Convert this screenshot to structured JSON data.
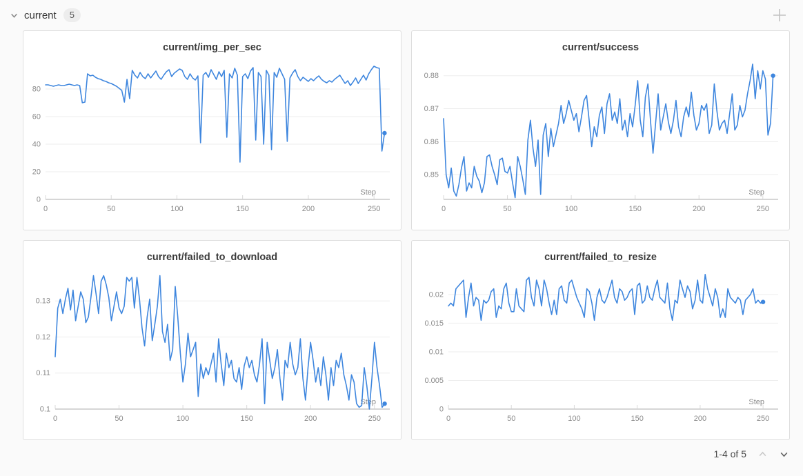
{
  "section": {
    "title": "current",
    "badge": "5"
  },
  "toolbar": {
    "add_panel_tooltip": "+"
  },
  "pagination": {
    "label": "1-4 of 5"
  },
  "colors": {
    "line": "#3e86de",
    "page_bg": "#fafafa",
    "panel_border": "#dedede",
    "grid_line": "#ededed",
    "axis_line": "#c9c9c9",
    "tick_text": "#8a8a8a"
  },
  "chart_data": [
    {
      "type": "line",
      "title": "current/img_per_sec",
      "xlabel": "Step",
      "x_ticks": [
        0,
        50,
        100,
        150,
        200,
        250
      ],
      "y_ticks": [
        0,
        20,
        40,
        60,
        80
      ],
      "xlim": [
        0,
        262
      ],
      "ylim": [
        0,
        98
      ],
      "x_start": 0,
      "x_step": 2,
      "end_marker": true,
      "values": [
        83,
        83,
        82.5,
        82,
        82.5,
        83,
        82.5,
        82.5,
        83,
        83.5,
        83,
        82.5,
        83,
        82.5,
        70,
        70.5,
        91,
        89.5,
        90,
        88.5,
        87.5,
        87,
        86,
        85.5,
        84.5,
        84,
        83,
        82,
        80.5,
        79,
        70.5,
        87,
        73,
        93.5,
        90,
        88,
        92,
        89,
        87.5,
        91,
        88,
        90.5,
        93,
        89,
        87,
        90,
        92.5,
        94,
        89,
        91.5,
        93,
        94.5,
        93.5,
        89,
        87,
        91,
        88,
        86.5,
        89.5,
        41,
        90,
        92,
        88.5,
        94,
        90.5,
        87,
        92.5,
        89,
        93.5,
        45,
        91,
        88,
        95,
        90,
        27,
        89,
        91,
        87.5,
        93,
        95.5,
        43,
        92,
        89,
        40,
        93.5,
        90,
        36,
        92,
        88.5,
        95,
        91,
        87,
        42,
        88,
        91.5,
        94,
        89,
        86,
        88.5,
        87,
        85.5,
        87.5,
        86,
        88,
        89.5,
        87,
        85.5,
        84.5,
        86,
        85,
        87,
        88.5,
        90,
        87,
        84,
        86,
        82.5,
        85,
        88,
        84,
        87,
        90,
        86.5,
        91,
        94,
        96.5,
        95.5,
        95,
        35,
        48
      ]
    },
    {
      "type": "line",
      "title": "current/success",
      "xlabel": "Step",
      "x_ticks": [
        0,
        50,
        100,
        150,
        200,
        250
      ],
      "y_ticks": [
        0.85,
        0.86,
        0.87,
        0.88
      ],
      "xlim": [
        0,
        262
      ],
      "ylim": [
        0.8425,
        0.8835
      ],
      "x_start": 0,
      "x_step": 2,
      "end_marker": true,
      "values": [
        0.867,
        0.85,
        0.846,
        0.852,
        0.845,
        0.8435,
        0.847,
        0.852,
        0.8555,
        0.845,
        0.8475,
        0.846,
        0.8525,
        0.8495,
        0.848,
        0.8445,
        0.8475,
        0.8555,
        0.856,
        0.8525,
        0.85,
        0.847,
        0.8545,
        0.855,
        0.851,
        0.8505,
        0.8525,
        0.8475,
        0.843,
        0.8555,
        0.8525,
        0.8485,
        0.844,
        0.8605,
        0.8665,
        0.858,
        0.8525,
        0.8605,
        0.844,
        0.862,
        0.8655,
        0.8555,
        0.864,
        0.8585,
        0.862,
        0.8655,
        0.871,
        0.8655,
        0.8685,
        0.8725,
        0.8695,
        0.8665,
        0.8685,
        0.863,
        0.8675,
        0.8725,
        0.874,
        0.8665,
        0.8585,
        0.8645,
        0.8615,
        0.868,
        0.8705,
        0.8625,
        0.8715,
        0.8745,
        0.8665,
        0.869,
        0.8655,
        0.873,
        0.8635,
        0.8665,
        0.8615,
        0.8685,
        0.8645,
        0.871,
        0.8785,
        0.8665,
        0.8615,
        0.8735,
        0.8775,
        0.8665,
        0.8565,
        0.8655,
        0.8745,
        0.8635,
        0.8675,
        0.8715,
        0.866,
        0.8625,
        0.8665,
        0.8725,
        0.8645,
        0.8615,
        0.8675,
        0.8705,
        0.8675,
        0.875,
        0.868,
        0.8635,
        0.8655,
        0.871,
        0.8695,
        0.8715,
        0.8625,
        0.865,
        0.8775,
        0.8695,
        0.8635,
        0.8655,
        0.8665,
        0.8625,
        0.8685,
        0.8745,
        0.8635,
        0.865,
        0.871,
        0.8675,
        0.8695,
        0.8745,
        0.8785,
        0.8835,
        0.873,
        0.8815,
        0.876,
        0.8815,
        0.879,
        0.862,
        0.8655,
        0.88
      ]
    },
    {
      "type": "line",
      "title": "current/failed_to_download",
      "xlabel": "Step",
      "x_ticks": [
        0,
        50,
        100,
        150,
        200,
        250
      ],
      "y_ticks": [
        0.1,
        0.11,
        0.12,
        0.13
      ],
      "xlim": [
        0,
        262
      ],
      "ylim": [
        0.1,
        0.1375
      ],
      "x_start": 0,
      "x_step": 2,
      "end_marker": true,
      "values": [
        0.1145,
        0.128,
        0.1305,
        0.1265,
        0.1305,
        0.1335,
        0.1275,
        0.133,
        0.1245,
        0.1285,
        0.1325,
        0.1305,
        0.124,
        0.1255,
        0.131,
        0.137,
        0.132,
        0.1265,
        0.1355,
        0.137,
        0.1345,
        0.131,
        0.1245,
        0.1285,
        0.1325,
        0.128,
        0.1265,
        0.1285,
        0.1365,
        0.1355,
        0.1365,
        0.128,
        0.1365,
        0.1305,
        0.1225,
        0.1175,
        0.1255,
        0.1305,
        0.119,
        0.1235,
        0.1285,
        0.137,
        0.1215,
        0.1185,
        0.1235,
        0.1135,
        0.1165,
        0.134,
        0.1255,
        0.1155,
        0.1075,
        0.1125,
        0.121,
        0.1145,
        0.1165,
        0.1185,
        0.1035,
        0.1125,
        0.1085,
        0.1115,
        0.1095,
        0.1125,
        0.1155,
        0.1075,
        0.1195,
        0.1125,
        0.1065,
        0.1155,
        0.1115,
        0.1135,
        0.1085,
        0.1075,
        0.1115,
        0.1055,
        0.112,
        0.1145,
        0.1115,
        0.1135,
        0.1095,
        0.1075,
        0.1125,
        0.1195,
        0.1015,
        0.1185,
        0.1135,
        0.1085,
        0.1115,
        0.1165,
        0.1085,
        0.1025,
        0.1135,
        0.1115,
        0.1185,
        0.1125,
        0.1095,
        0.1115,
        0.1195,
        0.1085,
        0.1025,
        0.1115,
        0.1185,
        0.1135,
        0.1075,
        0.1115,
        0.1065,
        0.1145,
        0.1095,
        0.1025,
        0.1115,
        0.1065,
        0.1135,
        0.1115,
        0.1155,
        0.1095,
        0.1065,
        0.1025,
        0.1095,
        0.1075,
        0.1015,
        0.1005,
        0.101,
        0.1115,
        0.1065,
        0.1,
        0.1085,
        0.1185,
        0.1115,
        0.1065,
        0.1005,
        0.1015
      ]
    },
    {
      "type": "line",
      "title": "current/failed_to_resize",
      "xlabel": "Step",
      "x_ticks": [
        0,
        50,
        100,
        150,
        200,
        250
      ],
      "y_ticks": [
        0,
        0.005,
        0.01,
        0.015,
        0.02
      ],
      "xlim": [
        0,
        262
      ],
      "ylim": [
        0,
        0.0236
      ],
      "x_start": 0,
      "x_step": 2,
      "end_marker": true,
      "values": [
        0.018,
        0.0185,
        0.018,
        0.021,
        0.0215,
        0.022,
        0.0225,
        0.016,
        0.0195,
        0.022,
        0.018,
        0.0195,
        0.019,
        0.0155,
        0.019,
        0.0185,
        0.019,
        0.0205,
        0.021,
        0.016,
        0.018,
        0.0175,
        0.021,
        0.022,
        0.0185,
        0.017,
        0.017,
        0.021,
        0.018,
        0.0175,
        0.017,
        0.0225,
        0.023,
        0.0195,
        0.018,
        0.0225,
        0.021,
        0.018,
        0.0225,
        0.021,
        0.0185,
        0.0165,
        0.019,
        0.0165,
        0.021,
        0.0215,
        0.019,
        0.0185,
        0.022,
        0.0225,
        0.021,
        0.0195,
        0.0185,
        0.0175,
        0.016,
        0.021,
        0.0205,
        0.0185,
        0.0155,
        0.0195,
        0.021,
        0.019,
        0.0185,
        0.0195,
        0.021,
        0.0225,
        0.0195,
        0.0185,
        0.021,
        0.0205,
        0.019,
        0.0195,
        0.0205,
        0.021,
        0.0165,
        0.0215,
        0.022,
        0.0185,
        0.019,
        0.0215,
        0.0195,
        0.019,
        0.021,
        0.0225,
        0.0195,
        0.019,
        0.0185,
        0.022,
        0.0175,
        0.0155,
        0.019,
        0.0185,
        0.0225,
        0.021,
        0.0195,
        0.0215,
        0.0205,
        0.0175,
        0.019,
        0.0225,
        0.019,
        0.0185,
        0.0235,
        0.021,
        0.0195,
        0.018,
        0.021,
        0.0195,
        0.016,
        0.0175,
        0.016,
        0.021,
        0.0195,
        0.019,
        0.0185,
        0.0195,
        0.019,
        0.0165,
        0.019,
        0.0195,
        0.02,
        0.021,
        0.0185,
        0.019,
        0.0185,
        0.0187
      ]
    }
  ]
}
